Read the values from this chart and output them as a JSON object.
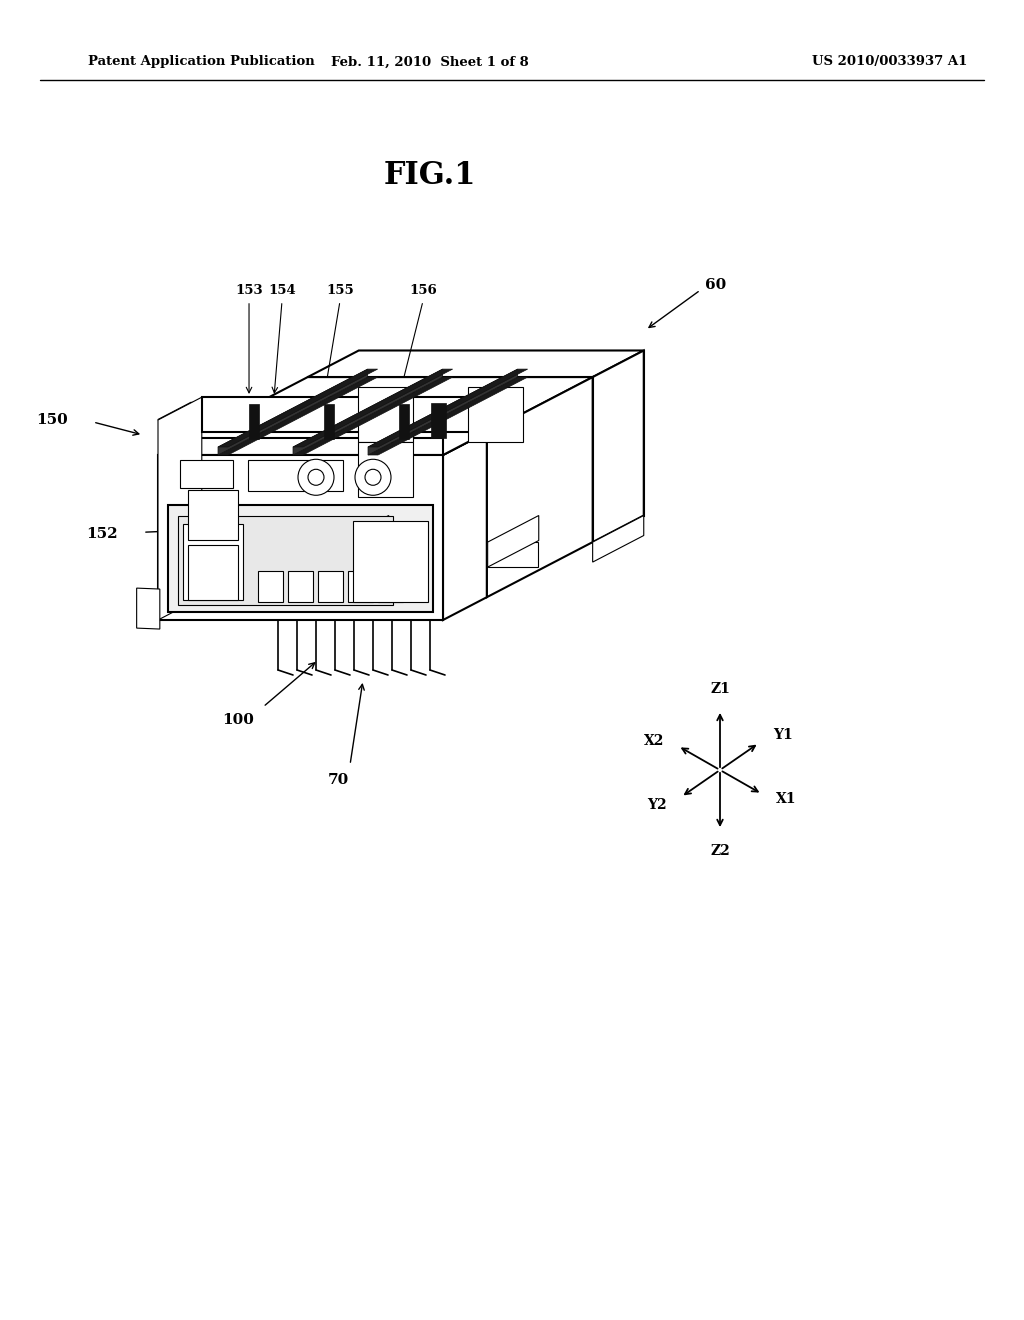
{
  "bg_color": "#ffffff",
  "lc": "#000000",
  "header_left": "Patent Application Publication",
  "header_mid": "Feb. 11, 2010  Sheet 1 of 8",
  "header_right": "US 2010/0033937 A1",
  "title": "FIG.1",
  "lw_main": 1.5,
  "lw_thin": 0.8,
  "lw_thick": 2.5
}
